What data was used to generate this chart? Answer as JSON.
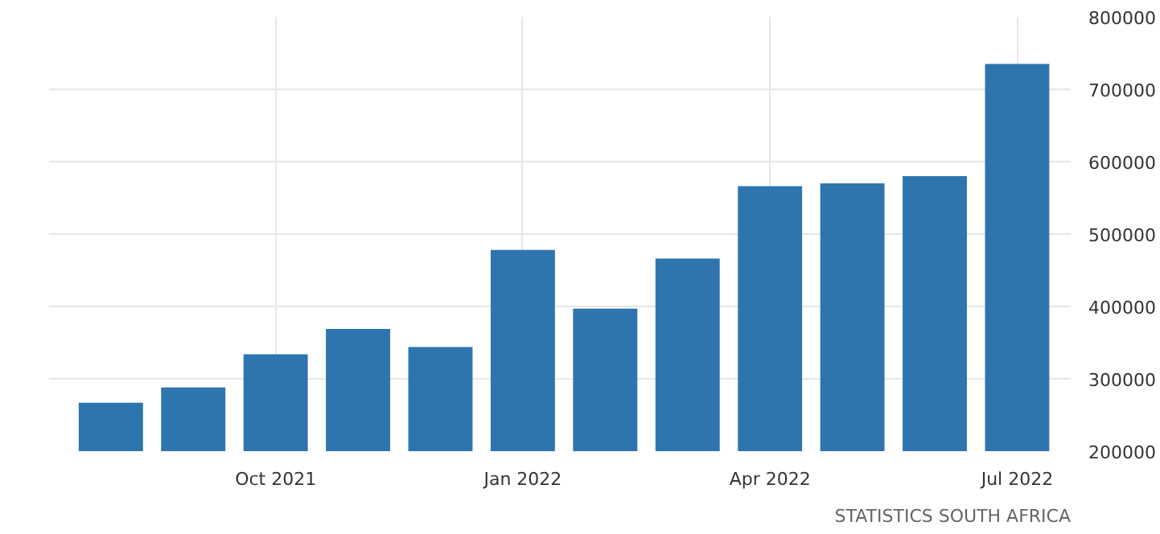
{
  "chart_data": {
    "type": "bar",
    "categories": [
      null,
      null,
      "Oct 2021",
      null,
      null,
      "Jan 2022",
      null,
      null,
      "Apr 2022",
      null,
      null,
      "Jul 2022"
    ],
    "values": [
      267000,
      288000,
      334000,
      369000,
      344000,
      478000,
      397000,
      466000,
      566000,
      570000,
      580000,
      735000
    ],
    "color": "#2e75b0",
    "ylim": [
      200000,
      800000
    ],
    "yticks": [
      200000,
      300000,
      400000,
      500000,
      600000,
      700000,
      800000
    ],
    "grid": true,
    "annotations": [
      "STATISTICS SOUTH AFRICA"
    ]
  }
}
